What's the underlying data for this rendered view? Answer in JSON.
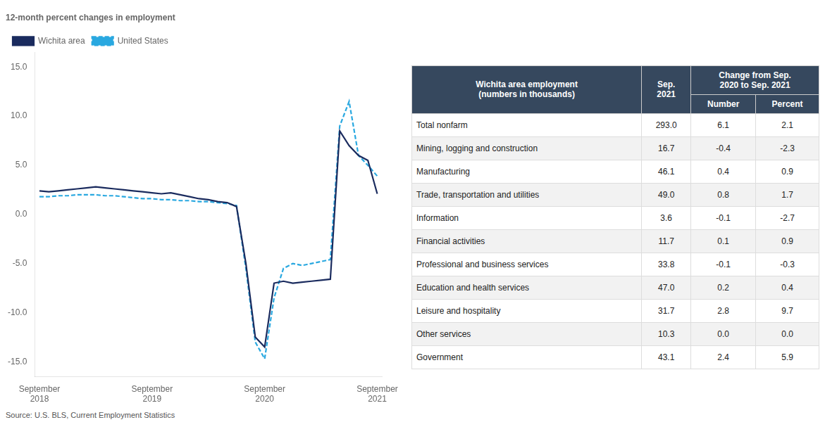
{
  "chart_data": [
    {
      "type": "line",
      "title": "12-month percent changes in employment",
      "annotations": [
        "Source: U.S. BLS, Current Employment Statistics"
      ],
      "categories": [
        "September\n2018",
        null,
        null,
        null,
        null,
        null,
        null,
        null,
        null,
        null,
        null,
        null,
        "September\n2019",
        null,
        null,
        null,
        null,
        null,
        null,
        null,
        null,
        null,
        null,
        null,
        "September\n2020",
        null,
        null,
        null,
        null,
        null,
        null,
        null,
        null,
        null,
        null,
        null,
        "September\n2021"
      ],
      "series": [
        {
          "name": "Wichita area",
          "color": "#1a2b5e",
          "line_style": "solid",
          "marker": "none",
          "values": [
            2.4,
            2.3,
            2.4,
            2.5,
            2.6,
            2.7,
            2.8,
            2.7,
            2.6,
            2.5,
            2.4,
            2.3,
            2.2,
            2.1,
            2.2,
            2.0,
            1.8,
            1.6,
            1.5,
            1.3,
            1.2,
            0.8,
            -5.0,
            -12.5,
            -13.5,
            -7.0,
            -6.8,
            -7.0,
            -6.9,
            -6.8,
            -6.7,
            -6.6,
            8.5,
            7.0,
            6.0,
            5.5,
            2.1
          ]
        },
        {
          "name": "United States",
          "color": "#29a8e0",
          "line_style": "dashed",
          "marker": "none",
          "values": [
            1.8,
            1.8,
            1.9,
            1.9,
            2.0,
            2.0,
            2.0,
            1.9,
            1.9,
            1.8,
            1.7,
            1.6,
            1.6,
            1.5,
            1.5,
            1.4,
            1.4,
            1.3,
            1.3,
            1.2,
            1.1,
            0.9,
            -5.5,
            -13.0,
            -14.7,
            -8.5,
            -5.5,
            -5.0,
            -5.2,
            -5.0,
            -4.8,
            -4.6,
            9.0,
            11.5,
            6.0,
            5.0,
            3.9
          ]
        }
      ],
      "ylim": [
        -16.5,
        16.5
      ],
      "yticks": [
        {
          "value": -15,
          "label": "-15.0"
        },
        {
          "value": -10,
          "label": "-10.0"
        },
        {
          "value": -5,
          "label": "-5.0"
        },
        {
          "value": 0,
          "label": "0.0"
        },
        {
          "value": 5,
          "label": "5.0"
        },
        {
          "value": 10,
          "label": "10.0"
        },
        {
          "value": 15,
          "label": "15.0"
        }
      ],
      "grid": false,
      "legend": "upper left"
    },
    {
      "type": "table",
      "columns": [
        {
          "label": "Wichita area employment\n(numbers in thousands)"
        },
        {
          "label": "Sep.\n2021"
        },
        {
          "label": "Change from Sep.\n2020 to Sep. 2021",
          "sub": [
            "Number",
            "Percent"
          ]
        }
      ],
      "rows": [
        [
          "Total nonfarm",
          "293.0",
          "6.1",
          "2.1"
        ],
        [
          "Mining, logging and construction",
          "16.7",
          "-0.4",
          "-2.3"
        ],
        [
          "Manufacturing",
          "46.1",
          "0.4",
          "0.9"
        ],
        [
          "Trade, transportation and utilities",
          "49.0",
          "0.8",
          "1.7"
        ],
        [
          "Information",
          "3.6",
          "-0.1",
          "-2.7"
        ],
        [
          "Financial activities",
          "11.7",
          "0.1",
          "0.9"
        ],
        [
          "Professional and business services",
          "33.8",
          "-0.1",
          "-0.3"
        ],
        [
          "Education and health services",
          "47.0",
          "0.2",
          "0.4"
        ],
        [
          "Leisure and hospitality",
          "31.7",
          "2.8",
          "9.7"
        ],
        [
          "Other services",
          "10.3",
          "0.0",
          "0.0"
        ],
        [
          "Government",
          "43.1",
          "2.4",
          "5.9"
        ]
      ]
    }
  ]
}
